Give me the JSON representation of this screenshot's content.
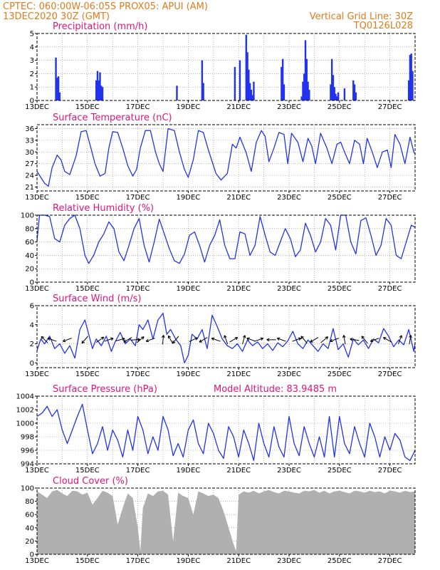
{
  "header": {
    "line1": "CPTEC:   060:00W-06:05S   PROX05: APUI (AM)",
    "line2": "13DEC2020 30Z (GMT)",
    "vgrid": "Vertical Grid Line: 30Z",
    "code": "TQ0126L028"
  },
  "colors": {
    "header": "#e07b1a",
    "title": "#e0147a",
    "series": "#2233ee",
    "cloud": "#b0b0b0"
  },
  "chart_data": [
    {
      "type": "bar",
      "title": "Precipitation (mm/h)",
      "x_ticks": [
        "13DEC",
        "15DEC",
        "17DEC",
        "19DEC",
        "21DEC",
        "23DEC",
        "25DEC",
        "27DEC"
      ],
      "xlim": [
        13,
        28
      ],
      "ylim": [
        0,
        5
      ],
      "y_ticks": [
        0,
        1,
        2,
        3,
        4,
        5
      ],
      "grid": true,
      "x": [
        13.75,
        13.8,
        13.85,
        13.9,
        15.35,
        15.4,
        15.45,
        15.5,
        15.55,
        15.6,
        18.55,
        19.55,
        19.6,
        20.85,
        21.05,
        21.3,
        21.35,
        21.4,
        21.45,
        21.5,
        21.55,
        21.6,
        22.7,
        22.75,
        22.8,
        23.5,
        23.55,
        23.6,
        23.65,
        23.7,
        23.75,
        23.8,
        24.65,
        24.7,
        24.75,
        24.8,
        24.85,
        24.9,
        24.95,
        25.2,
        25.55,
        25.6,
        25.65,
        27.75,
        27.8,
        27.85,
        27.9
      ],
      "values": [
        3.2,
        1.7,
        1.8,
        0.6,
        1.5,
        2.2,
        1.5,
        2.1,
        1.1,
        1.0,
        1.1,
        3.0,
        1.3,
        2.5,
        3.0,
        4.9,
        3.6,
        2.3,
        1.3,
        0.8,
        0.4,
        1.4,
        2.5,
        3.1,
        1.2,
        0.3,
        1.4,
        2.0,
        4.5,
        3.1,
        1.4,
        0.8,
        1.2,
        3.1,
        1.9,
        1.0,
        0.5,
        0.3,
        0.6,
        0.9,
        1.5,
        1.2,
        0.6,
        1.5,
        3.4,
        3.5,
        2.2
      ]
    },
    {
      "type": "line",
      "title": "Surface Temperature (nC)",
      "x_ticks": [
        "13DEC",
        "15DEC",
        "17DEC",
        "19DEC",
        "21DEC",
        "23DEC",
        "25DEC",
        "27DEC"
      ],
      "xlim": [
        13,
        28
      ],
      "ylim": [
        20,
        37
      ],
      "y_ticks": [
        21,
        24,
        27,
        30,
        33,
        36
      ],
      "grid": true,
      "x": [
        13.0,
        13.15,
        13.3,
        13.45,
        13.6,
        13.8,
        13.95,
        14.1,
        14.3,
        14.55,
        14.75,
        14.95,
        15.1,
        15.3,
        15.5,
        15.7,
        15.85,
        16.0,
        16.2,
        16.4,
        16.6,
        16.8,
        16.95,
        17.1,
        17.3,
        17.5,
        17.7,
        17.85,
        18.0,
        18.2,
        18.45,
        18.65,
        18.85,
        19.0,
        19.2,
        19.4,
        19.6,
        19.8,
        19.95,
        20.1,
        20.3,
        20.55,
        20.75,
        20.9,
        21.05,
        21.3,
        21.5,
        21.7,
        21.9,
        22.05,
        22.2,
        22.4,
        22.6,
        22.8,
        22.95,
        23.1,
        23.35,
        23.55,
        23.75,
        23.9,
        24.05,
        24.25,
        24.5,
        24.7,
        24.9,
        25.05,
        25.2,
        25.4,
        25.6,
        25.8,
        25.95,
        26.1,
        26.3,
        26.5,
        26.7,
        26.9,
        27.05,
        27.2,
        27.4,
        27.6,
        27.8,
        27.95,
        28.0
      ],
      "values": [
        25,
        23.5,
        22,
        21.2,
        26,
        29.2,
        28,
        25,
        24.2,
        29,
        35.2,
        35.5,
        32,
        27,
        23.8,
        24.5,
        31,
        35.2,
        35,
        31,
        26.5,
        23.8,
        25.5,
        31,
        35.5,
        35.5,
        30,
        27,
        25,
        36,
        35.5,
        30,
        25.5,
        23.5,
        28,
        35.5,
        35,
        30.5,
        27.5,
        24.5,
        22.8,
        24.5,
        32,
        31,
        33.8,
        29.8,
        25,
        32.5,
        35.5,
        34,
        27.5,
        31,
        35,
        34.5,
        27,
        34.8,
        32.5,
        27.5,
        33.5,
        31.5,
        27,
        34.8,
        31,
        27,
        32,
        32.5,
        30,
        27,
        33,
        32,
        27,
        33.5,
        30,
        26,
        30,
        30.5,
        26,
        34.5,
        32,
        27,
        33.8,
        30,
        29.5
      ]
    },
    {
      "type": "line",
      "title": "Relative Humidity (%)",
      "x_ticks": [
        "13DEC",
        "15DEC",
        "17DEC",
        "19DEC",
        "21DEC",
        "23DEC",
        "25DEC",
        "27DEC"
      ],
      "xlim": [
        13,
        28
      ],
      "ylim": [
        0,
        100
      ],
      "y_ticks": [
        0,
        20,
        40,
        60,
        80,
        100
      ],
      "grid": true,
      "x": [
        13.0,
        13.1,
        13.3,
        13.5,
        13.7,
        13.9,
        14.1,
        14.3,
        14.5,
        14.7,
        14.9,
        15.05,
        15.25,
        15.45,
        15.65,
        15.85,
        16.05,
        16.25,
        16.45,
        16.65,
        16.85,
        17.05,
        17.25,
        17.45,
        17.65,
        17.85,
        18.05,
        18.25,
        18.45,
        18.65,
        18.85,
        19.05,
        19.25,
        19.45,
        19.65,
        19.85,
        20.05,
        20.25,
        20.45,
        20.65,
        20.85,
        21.05,
        21.25,
        21.45,
        21.65,
        21.85,
        22.05,
        22.25,
        22.45,
        22.65,
        22.85,
        23.05,
        23.25,
        23.45,
        23.65,
        23.85,
        24.05,
        24.25,
        24.45,
        24.65,
        24.85,
        25.05,
        25.25,
        25.45,
        25.65,
        25.85,
        26.05,
        26.25,
        26.45,
        26.65,
        26.85,
        27.05,
        27.25,
        27.45,
        27.65,
        27.85,
        28.0
      ],
      "values": [
        62,
        100,
        100,
        98,
        65,
        60,
        85,
        95,
        100,
        80,
        40,
        28,
        40,
        60,
        72,
        90,
        80,
        45,
        32,
        55,
        80,
        95,
        55,
        30,
        60,
        94,
        72,
        50,
        32,
        28,
        42,
        70,
        75,
        55,
        30,
        55,
        70,
        93,
        55,
        35,
        35,
        75,
        72,
        40,
        55,
        98,
        70,
        45,
        40,
        60,
        80,
        65,
        38,
        48,
        88,
        70,
        45,
        60,
        95,
        85,
        48,
        100,
        100,
        60,
        42,
        92,
        96,
        70,
        40,
        55,
        95,
        85,
        40,
        35,
        60,
        85,
        82
      ]
    },
    {
      "type": "line",
      "title": "Surface Wind (m/s)",
      "x_ticks": [
        "13DEC",
        "15DEC",
        "17DEC",
        "19DEC",
        "21DEC",
        "23DEC",
        "25DEC",
        "27DEC"
      ],
      "xlim": [
        13,
        28
      ],
      "ylim": [
        -0.5,
        6
      ],
      "y_ticks": [
        0,
        2,
        4,
        6
      ],
      "grid": true,
      "x": [
        13.0,
        13.15,
        13.3,
        13.5,
        13.7,
        13.9,
        14.1,
        14.3,
        14.5,
        14.7,
        14.9,
        15.05,
        15.2,
        15.35,
        15.55,
        15.75,
        15.95,
        16.1,
        16.3,
        16.5,
        16.7,
        16.9,
        17.05,
        17.2,
        17.4,
        17.6,
        17.8,
        18.0,
        18.15,
        18.3,
        18.5,
        18.7,
        18.85,
        19.0,
        19.15,
        19.35,
        19.55,
        19.75,
        19.95,
        20.15,
        20.35,
        20.55,
        20.75,
        20.95,
        21.15,
        21.35,
        21.55,
        21.75,
        21.95,
        22.15,
        22.35,
        22.55,
        22.75,
        22.95,
        23.15,
        23.35,
        23.55,
        23.75,
        23.95,
        24.15,
        24.35,
        24.55,
        24.75,
        24.95,
        25.15,
        25.35,
        25.55,
        25.75,
        25.95,
        26.15,
        26.35,
        26.55,
        26.75,
        26.95,
        27.15,
        27.35,
        27.55,
        27.75,
        27.95,
        28.0
      ],
      "values": [
        1.3,
        2.5,
        2.0,
        2.8,
        1.5,
        2.0,
        1.0,
        1.8,
        0.5,
        3.5,
        4.5,
        3.0,
        1.5,
        2.5,
        1.8,
        2.8,
        1.2,
        2.2,
        3.2,
        2.0,
        2.5,
        1.8,
        4.0,
        3.5,
        4.5,
        2.5,
        4.5,
        5.2,
        3.0,
        3.5,
        2.5,
        1.8,
        0.0,
        0.8,
        3.0,
        2.5,
        3.5,
        1.5,
        5.0,
        3.8,
        2.5,
        1.8,
        1.5,
        2.0,
        1.2,
        2.4,
        1.8,
        2.2,
        1.5,
        2.0,
        1.3,
        2.1,
        1.7,
        2.3,
        3.3,
        2.0,
        1.5,
        2.4,
        1.8,
        1.2,
        2.0,
        1.5,
        3.6,
        1.4,
        2.0,
        0.6,
        2.5,
        1.9,
        2.4,
        1.5,
        2.5,
        2.1,
        3.6,
        2.8,
        1.7,
        2.4,
        1.9,
        3.5,
        1.2,
        2.1
      ],
      "vector_x": [
        13.3,
        13.6,
        14.2,
        14.9,
        15.5,
        15.85,
        16.3,
        16.6,
        16.9,
        17.1,
        17.5,
        18.0,
        18.3,
        18.5,
        19.2,
        19.6,
        20.1,
        20.5,
        20.8,
        21.2,
        21.5,
        21.8,
        22.3,
        22.7,
        23.3,
        23.6,
        24.0,
        24.4,
        24.8,
        25.2,
        25.6,
        26.0,
        26.4,
        26.9,
        27.4,
        27.8
      ],
      "vector_angle_deg": [
        135,
        160,
        200,
        230,
        35,
        20,
        15,
        210,
        5,
        40,
        200,
        85,
        120,
        230,
        25,
        210,
        160,
        110,
        30,
        75,
        160,
        20,
        180,
        160,
        20,
        130,
        210,
        40,
        200,
        100,
        170,
        130,
        200,
        150,
        70,
        80
      ]
    },
    {
      "type": "line",
      "title": "Surface Pressure (hPa)",
      "annotation": "Model Altitude: 83.9485 m",
      "x_ticks": [
        "13DEC",
        "15DEC",
        "17DEC",
        "19DEC",
        "21DEC",
        "23DEC",
        "25DEC",
        "27DEC"
      ],
      "xlim": [
        13,
        28
      ],
      "ylim": [
        994,
        1004
      ],
      "y_ticks": [
        994,
        996,
        998,
        1000,
        1002,
        1004
      ],
      "grid": true,
      "x": [
        13.0,
        13.2,
        13.4,
        13.6,
        13.8,
        14.0,
        14.2,
        14.4,
        14.6,
        14.8,
        15.0,
        15.2,
        15.4,
        15.6,
        15.8,
        16.0,
        16.2,
        16.4,
        16.6,
        16.8,
        17.0,
        17.2,
        17.4,
        17.6,
        17.8,
        18.0,
        18.2,
        18.4,
        18.6,
        18.8,
        19.0,
        19.2,
        19.4,
        19.6,
        19.8,
        20.0,
        20.2,
        20.4,
        20.6,
        20.8,
        21.0,
        21.2,
        21.4,
        21.6,
        21.8,
        22.0,
        22.2,
        22.4,
        22.6,
        22.8,
        23.0,
        23.2,
        23.4,
        23.6,
        23.8,
        24.0,
        24.2,
        24.4,
        24.6,
        24.8,
        25.0,
        25.2,
        25.4,
        25.6,
        25.8,
        26.0,
        26.2,
        26.4,
        26.6,
        26.8,
        27.0,
        27.2,
        27.4,
        27.6,
        27.8,
        28.0
      ],
      "values": [
        1001,
        1001.5,
        1002.5,
        1001,
        1002,
        999,
        997,
        999,
        1001,
        1002.8,
        999,
        995.5,
        997,
        999.5,
        996,
        999,
        997.5,
        995,
        999,
        996,
        1001,
        999,
        995.5,
        998,
        996,
        1001,
        999,
        995.2,
        997,
        995,
        999,
        1000.5,
        997,
        995.5,
        1000,
        998.5,
        996,
        994.8,
        999.5,
        998,
        995,
        999,
        997,
        994.5,
        1000,
        997,
        995,
        999.5,
        996.5,
        995,
        1001,
        997,
        995.2,
        999.5,
        997,
        995,
        998,
        995,
        1001,
        995,
        1001,
        997,
        995.5,
        999.5,
        997,
        995,
        1000,
        998,
        995,
        998,
        996,
        998.5,
        997.5,
        995,
        994.5,
        996
      ]
    },
    {
      "type": "area",
      "title": "Cloud Cover (%)",
      "x_ticks": [
        "13DEC",
        "15DEC",
        "17DEC",
        "19DEC",
        "21DEC",
        "23DEC",
        "25DEC",
        "27DEC"
      ],
      "xlim": [
        13,
        28
      ],
      "ylim": [
        0,
        100
      ],
      "y_ticks": [
        0,
        20,
        40,
        60,
        80,
        100
      ],
      "grid": true,
      "x": [
        13.0,
        13.2,
        13.4,
        13.6,
        13.8,
        14.0,
        14.2,
        14.4,
        14.6,
        14.8,
        15.0,
        15.2,
        15.4,
        15.6,
        15.8,
        16.0,
        16.2,
        16.4,
        16.6,
        16.8,
        17.0,
        17.1,
        17.2,
        17.4,
        17.6,
        17.8,
        18.0,
        18.2,
        18.4,
        18.6,
        18.8,
        19.0,
        19.2,
        19.4,
        19.6,
        19.8,
        20.0,
        20.2,
        20.4,
        20.6,
        20.8,
        20.9,
        21.0,
        21.2,
        21.4,
        21.6,
        21.8,
        22.0,
        22.2,
        22.4,
        22.6,
        22.8,
        23.0,
        23.2,
        23.4,
        23.6,
        23.8,
        24.0,
        24.2,
        24.4,
        24.6,
        24.8,
        25.0,
        25.2,
        25.4,
        25.6,
        25.8,
        26.0,
        26.2,
        26.4,
        26.6,
        26.8,
        27.0,
        27.2,
        27.4,
        27.6,
        27.8,
        28.0
      ],
      "values": [
        95,
        90,
        85,
        95,
        97,
        92,
        88,
        96,
        95,
        90,
        93,
        75,
        85,
        96,
        93,
        88,
        45,
        70,
        92,
        85,
        40,
        5,
        70,
        92,
        88,
        95,
        96,
        90,
        20,
        93,
        88,
        85,
        60,
        95,
        92,
        88,
        90,
        85,
        65,
        40,
        15,
        5,
        90,
        95,
        93,
        96,
        92,
        95,
        97,
        94,
        92,
        96,
        95,
        93,
        92,
        96,
        95,
        97,
        93,
        96,
        92,
        95,
        96,
        94,
        92,
        96,
        95,
        93,
        96,
        94,
        95,
        92,
        96,
        95,
        93,
        96,
        94,
        95
      ]
    }
  ]
}
